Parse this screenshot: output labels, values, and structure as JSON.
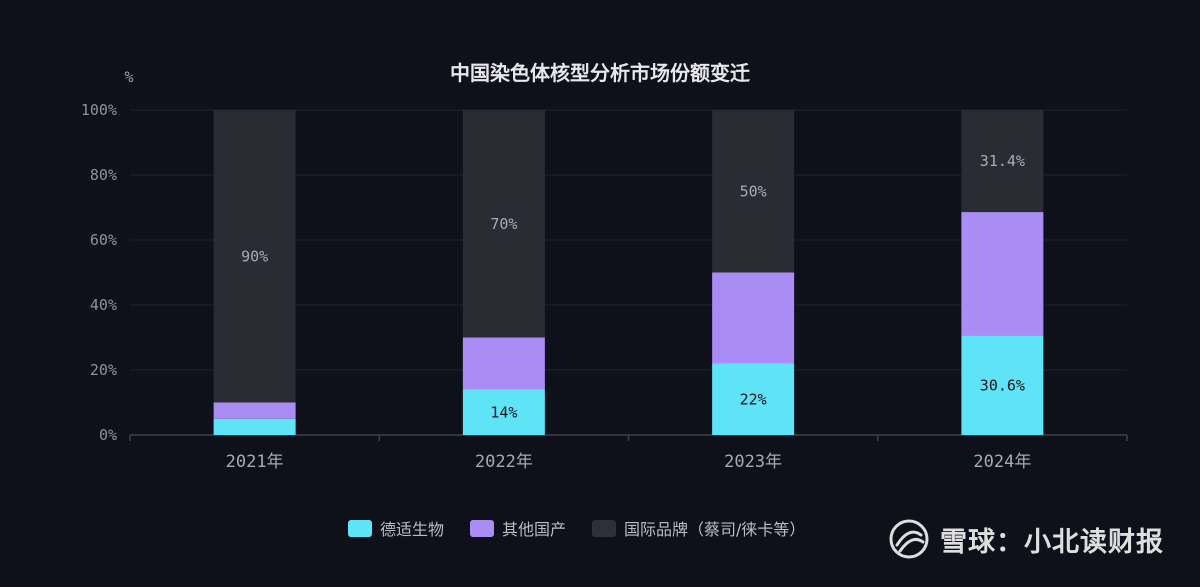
{
  "chart_data": {
    "type": "bar",
    "stacked": true,
    "title": "中国染色体核型分析市场份额变迁",
    "ylabel": "%",
    "ylim": [
      0,
      100
    ],
    "yticks": [
      "0%",
      "20%",
      "40%",
      "60%",
      "80%",
      "100%"
    ],
    "categories": [
      "2021年",
      "2022年",
      "2023年",
      "2024年"
    ],
    "series": [
      {
        "name": "德适生物",
        "color": "#5ee3f7",
        "values": [
          5,
          14,
          22,
          30.6
        ],
        "labels": [
          "",
          "14%",
          "22%",
          "30.6%"
        ]
      },
      {
        "name": "其他国产",
        "color": "#a98cf4",
        "values": [
          5,
          16,
          28,
          38
        ],
        "labels": [
          "",
          "",
          "",
          ""
        ]
      },
      {
        "name": "国际品牌（蔡司/徕卡等）",
        "color": "#2a2c33",
        "values": [
          90,
          70,
          50,
          31.4
        ],
        "labels": [
          "90%",
          "70%",
          "50%",
          "31.4%"
        ]
      }
    ],
    "grid": true,
    "legend_position": "bottom"
  },
  "watermark": {
    "text": "雪球：小北读财报",
    "icon": "snowball-logo-icon"
  }
}
